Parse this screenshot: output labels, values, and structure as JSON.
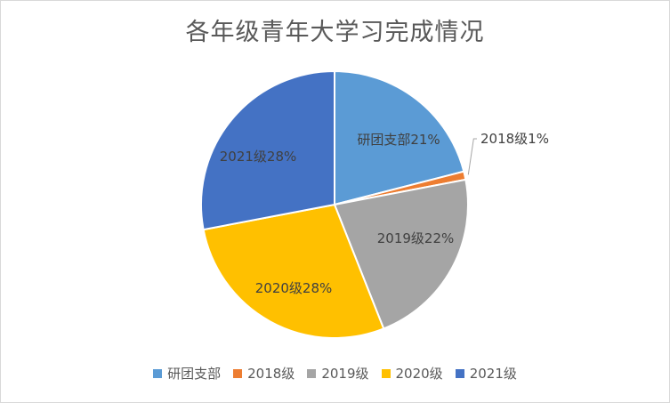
{
  "chart_data": {
    "type": "pie",
    "title": "各年级青年大学习完成情况",
    "categories": [
      "研团支部",
      "2018级",
      "2019级",
      "2020级",
      "2021级"
    ],
    "values": [
      21,
      1,
      22,
      28,
      28
    ],
    "labels": [
      "研团支部21%",
      "2018级1%",
      "2019级22%",
      "2020级28%",
      "2021级28%"
    ],
    "colors": [
      "#5B9BD5",
      "#ED7D31",
      "#A5A5A5",
      "#FFC000",
      "#4472C4"
    ],
    "legend_position": "bottom"
  }
}
